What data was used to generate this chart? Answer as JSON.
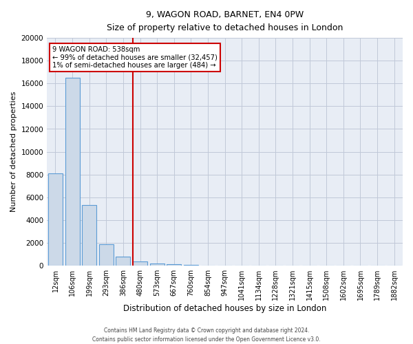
{
  "title": "9, WAGON ROAD, BARNET, EN4 0PW",
  "subtitle": "Size of property relative to detached houses in London",
  "xlabel": "Distribution of detached houses by size in London",
  "ylabel": "Number of detached properties",
  "bar_labels": [
    "12sqm",
    "106sqm",
    "199sqm",
    "293sqm",
    "386sqm",
    "480sqm",
    "573sqm",
    "667sqm",
    "760sqm",
    "854sqm",
    "947sqm",
    "1041sqm",
    "1134sqm",
    "1228sqm",
    "1321sqm",
    "1415sqm",
    "1508sqm",
    "1602sqm",
    "1695sqm",
    "1789sqm",
    "1882sqm"
  ],
  "bar_values": [
    8100,
    16500,
    5300,
    1850,
    800,
    350,
    200,
    130,
    80,
    0,
    0,
    0,
    0,
    0,
    0,
    0,
    0,
    0,
    0,
    0,
    0
  ],
  "bar_color": "#ccd9e8",
  "bar_edge_color": "#5b9bd5",
  "vline_pos": 4.58,
  "vline_color": "#cc0000",
  "ylim": [
    0,
    20000
  ],
  "yticks": [
    0,
    2000,
    4000,
    6000,
    8000,
    10000,
    12000,
    14000,
    16000,
    18000,
    20000
  ],
  "annotation_title": "9 WAGON ROAD: 538sqm",
  "annotation_line1": "← 99% of detached houses are smaller (32,457)",
  "annotation_line2": "1% of semi-detached houses are larger (484) →",
  "annotation_box_color": "#ffffff",
  "annotation_box_edge": "#cc0000",
  "grid_color": "#c0c8d8",
  "bg_color": "#e8edf5",
  "fig_bg_color": "#ffffff",
  "footer1": "Contains HM Land Registry data © Crown copyright and database right 2024.",
  "footer2": "Contains public sector information licensed under the Open Government Licence v3.0."
}
